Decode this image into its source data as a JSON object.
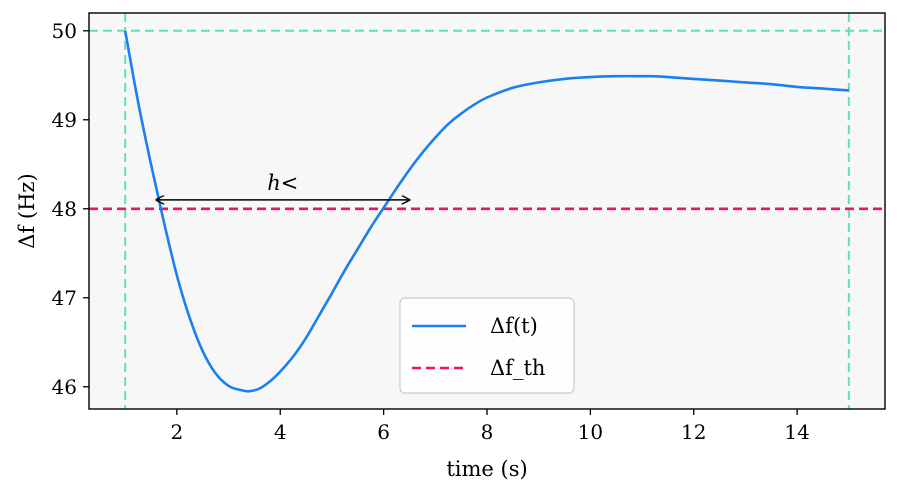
{
  "chart_data": {
    "type": "line",
    "xlabel": "time (s)",
    "ylabel": "Δf (Hz)",
    "xlim": [
      0.3,
      15.7
    ],
    "ylim": [
      45.75,
      50.2
    ],
    "xticks": [
      2,
      4,
      6,
      8,
      10,
      12,
      14
    ],
    "yticks": [
      46,
      47,
      48,
      49,
      50
    ],
    "grid": false,
    "legend_position": "bottom-center",
    "colors": {
      "signal": "#1a80f0",
      "threshold": "#f0145a",
      "guides": "#5fe0bd",
      "background": "#f7f7f7"
    },
    "series": [
      {
        "name": "Δf(t)",
        "style": "solid",
        "x": [
          1.0,
          1.25,
          1.5,
          1.75,
          2.0,
          2.25,
          2.5,
          2.75,
          3.0,
          3.25,
          3.4,
          3.6,
          3.8,
          4.0,
          4.25,
          4.5,
          4.75,
          5.0,
          5.25,
          5.5,
          5.75,
          6.0,
          6.25,
          6.5,
          6.75,
          7.0,
          7.25,
          7.5,
          7.75,
          8.0,
          8.5,
          9.0,
          9.5,
          10.0,
          10.5,
          11.0,
          11.2,
          11.5,
          12.0,
          12.5,
          13.0,
          13.5,
          14.0,
          14.5,
          15.0
        ],
        "y": [
          50.0,
          49.2,
          48.5,
          47.85,
          47.25,
          46.77,
          46.4,
          46.15,
          46.01,
          45.96,
          45.95,
          45.98,
          46.06,
          46.17,
          46.34,
          46.55,
          46.8,
          47.05,
          47.31,
          47.55,
          47.79,
          48.01,
          48.23,
          48.44,
          48.63,
          48.8,
          48.95,
          49.07,
          49.17,
          49.25,
          49.36,
          49.42,
          49.46,
          49.48,
          49.49,
          49.49,
          49.49,
          49.48,
          49.46,
          49.44,
          49.42,
          49.4,
          49.37,
          49.35,
          49.33
        ]
      },
      {
        "name": "Δf_th",
        "style": "dashed",
        "y_const": 48.0
      }
    ],
    "guides": {
      "h_line_y": 50.0,
      "v_lines_x": [
        1.0,
        15.0
      ]
    },
    "annotations": [
      {
        "type": "double-arrow",
        "text": "h<",
        "x_start": 1.6,
        "x_end": 6.5,
        "y": 48.1
      }
    ]
  }
}
